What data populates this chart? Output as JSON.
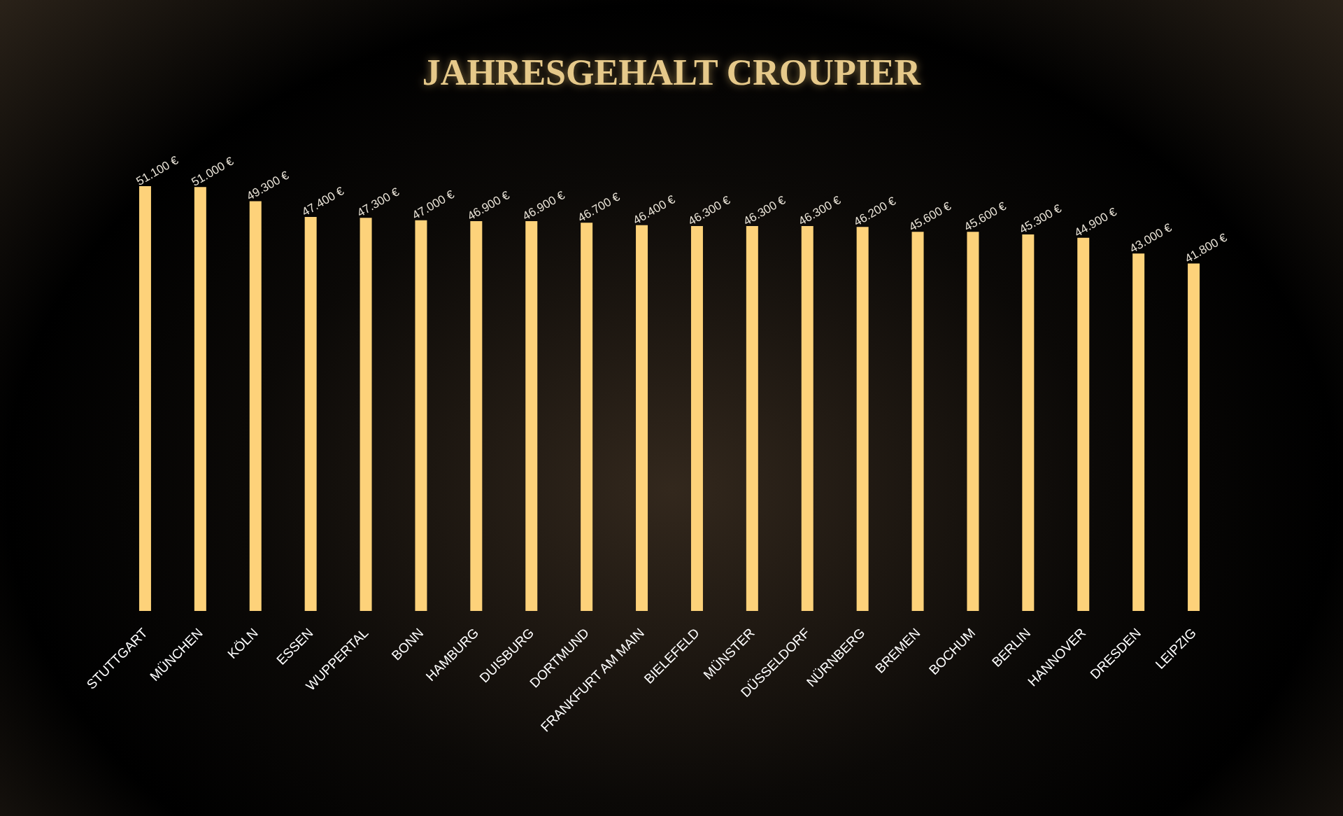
{
  "chart_data": {
    "type": "bar",
    "title": "JAHRESGEHALT CROUPIER",
    "categories": [
      "STUTTGART",
      "MÜNCHEN",
      "KÖLN",
      "ESSEN",
      "WUPPERTAL",
      "BONN",
      "HAMBURG",
      "DUISBURG",
      "DORTMUND",
      "FRANKFURT AM MAIN",
      "BIELEFELD",
      "MÜNSTER",
      "DÜSSELDORF",
      "NÜRNBERG",
      "BREMEN",
      "BOCHUM",
      "BERLIN",
      "HANNOVER",
      "DRESDEN",
      "LEIPZIG"
    ],
    "values": [
      51100,
      51000,
      49300,
      47400,
      47300,
      47000,
      46900,
      46900,
      46700,
      46400,
      46300,
      46300,
      46300,
      46200,
      45600,
      45600,
      45300,
      44900,
      43000,
      41800
    ],
    "value_labels": [
      "51.100 €",
      "51.000 €",
      "49.300 €",
      "47.400 €",
      "47.300 €",
      "47.000 €",
      "46.900 €",
      "46.900 €",
      "46.700 €",
      "46.400 €",
      "46.300 €",
      "46.300 €",
      "46.300 €",
      "46.200 €",
      "45.600 €",
      "45.600 €",
      "45.300 €",
      "44.900 €",
      "43.000 €",
      "41.800 €"
    ],
    "color": "#fdd27a",
    "grid": false
  }
}
